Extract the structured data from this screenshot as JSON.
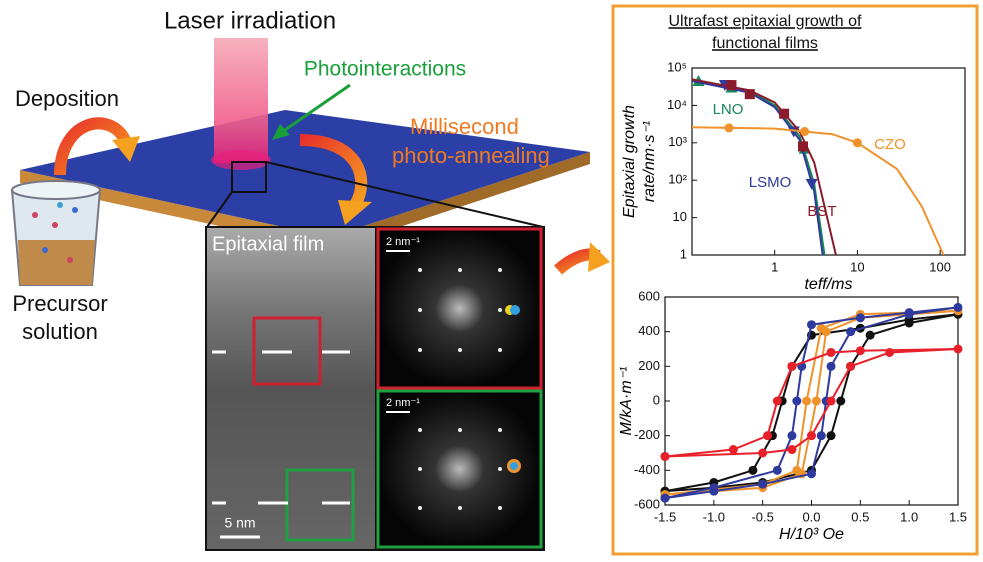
{
  "labels": {
    "laser": "Laser irradiation",
    "photo": "Photointeractions",
    "deposition": "Deposition",
    "annealing": [
      "Millisecond",
      "photo-annealing"
    ],
    "precursor": [
      "Precursor",
      "solution"
    ],
    "film": "Epitaxial film",
    "fft_scale": [
      "2 nm⁻¹",
      "2 nm⁻¹"
    ],
    "scale_bar": "5 nm",
    "panel_title": [
      "Ultrafast epitaxial growth of",
      "functional films"
    ]
  },
  "chart_data": [
    {
      "type": "line",
      "xscale": "log",
      "yscale": "log",
      "xlabel": "teff/ms",
      "ylabel": [
        "Epitaxial growth",
        "rate/nm·s⁻¹"
      ],
      "xlim": [
        0.1,
        200
      ],
      "xticks": [
        1,
        10,
        100
      ],
      "ylim": [
        1,
        100000
      ],
      "yticks": [
        1,
        10,
        {
          "value": 100,
          "label": "10²"
        },
        {
          "value": 1000,
          "label": "10³"
        },
        {
          "value": 10000,
          "label": "10⁴"
        },
        {
          "value": 100000,
          "label": "10⁵"
        }
      ],
      "series": [
        {
          "name": "LNO",
          "color": "#17865a",
          "marker": "triangle-up",
          "x": [
            0.12,
            0.3,
            2.3
          ],
          "values": [
            45000,
            30000,
            700
          ],
          "fit_x": [
            0.1,
            0.5,
            1,
            2,
            3,
            4
          ],
          "fit_values": [
            50000,
            25000,
            10000,
            1500,
            80,
            1
          ]
        },
        {
          "name": "LSMO",
          "color": "#2e3a9e",
          "marker": "triangle-down",
          "x": [
            0.25,
            1.7,
            2.8
          ],
          "values": [
            35000,
            2000,
            80
          ],
          "fit_x": [
            0.1,
            0.5,
            1,
            2,
            3,
            3.8
          ],
          "fit_values": [
            45000,
            22000,
            9000,
            1200,
            50,
            1
          ]
        },
        {
          "name": "BST",
          "color": "#8b1a2a",
          "marker": "square",
          "x": [
            0.3,
            0.5,
            1.3,
            2.2
          ],
          "values": [
            35000,
            20000,
            6000,
            800
          ],
          "fit_x": [
            0.1,
            0.5,
            1,
            2,
            3,
            4,
            5.5
          ],
          "fit_values": [
            50000,
            25000,
            12000,
            2000,
            300,
            20,
            1
          ]
        },
        {
          "name": "CZO",
          "color": "#f0922a",
          "marker": "circle",
          "x": [
            0.28,
            2.3,
            10
          ],
          "values": [
            2500,
            2000,
            1000
          ],
          "fit_x": [
            0.1,
            1,
            5,
            10,
            30,
            60,
            110
          ],
          "fit_values": [
            2600,
            2400,
            1700,
            1000,
            200,
            20,
            1
          ]
        }
      ]
    },
    {
      "type": "line",
      "xlabel": "H/10³ Oe",
      "ylabel": "M/kA·m⁻¹",
      "xlim": [
        -1.5,
        1.5
      ],
      "xticks": [
        -1.5,
        {
          "value": -1,
          "label": "-1.0"
        },
        -0.5,
        {
          "value": 0,
          "label": "0.0"
        },
        0.5,
        {
          "value": 1,
          "label": "1.0"
        },
        1.5
      ],
      "ylim": [
        -600,
        600
      ],
      "yticks": [
        -600,
        -400,
        -200,
        0,
        200,
        400,
        600
      ],
      "series": [
        {
          "color": "#111111",
          "marker": "circle",
          "x": [
            -1.5,
            -1,
            -0.5,
            0,
            0.2,
            0.3,
            0.4,
            0.6,
            1,
            1.5,
            1,
            0.5,
            0,
            -0.2,
            -0.3,
            -0.4,
            -0.6,
            -1,
            -1.5
          ],
          "values": [
            -520,
            -500,
            -470,
            -400,
            -200,
            0,
            200,
            380,
            450,
            500,
            470,
            420,
            380,
            200,
            0,
            -200,
            -400,
            -470,
            -520
          ]
        },
        {
          "color": "#f0922a",
          "marker": "circle",
          "x": [
            -1.5,
            -0.5,
            -0.1,
            0.05,
            0.15,
            0.5,
            1.5,
            0.5,
            0.1,
            -0.05,
            -0.15,
            -0.5,
            -1.5
          ],
          "values": [
            -540,
            -500,
            -420,
            0,
            400,
            480,
            520,
            500,
            420,
            0,
            -400,
            -480,
            -540
          ]
        },
        {
          "color": "#2e3a9e",
          "marker": "circle",
          "x": [
            -1.5,
            -1,
            -0.5,
            0,
            0.1,
            0.15,
            0.2,
            0.4,
            1,
            1.5,
            1,
            0.5,
            0,
            -0.1,
            -0.15,
            -0.2,
            -0.35,
            -1,
            -1.5
          ],
          "values": [
            -560,
            -520,
            -480,
            -420,
            -200,
            0,
            200,
            400,
            500,
            540,
            510,
            480,
            440,
            200,
            0,
            -200,
            -400,
            -500,
            -560
          ]
        },
        {
          "color": "#e8202a",
          "marker": "circle",
          "x": [
            -1.5,
            -0.5,
            -0.2,
            0,
            0.2,
            0.4,
            0.8,
            1.5,
            0.5,
            0.2,
            -0.2,
            -0.35,
            -0.45,
            -0.8,
            -1.5
          ],
          "values": [
            -320,
            -300,
            -280,
            -200,
            0,
            200,
            280,
            300,
            290,
            280,
            200,
            0,
            -200,
            -280,
            -320
          ]
        }
      ]
    }
  ]
}
